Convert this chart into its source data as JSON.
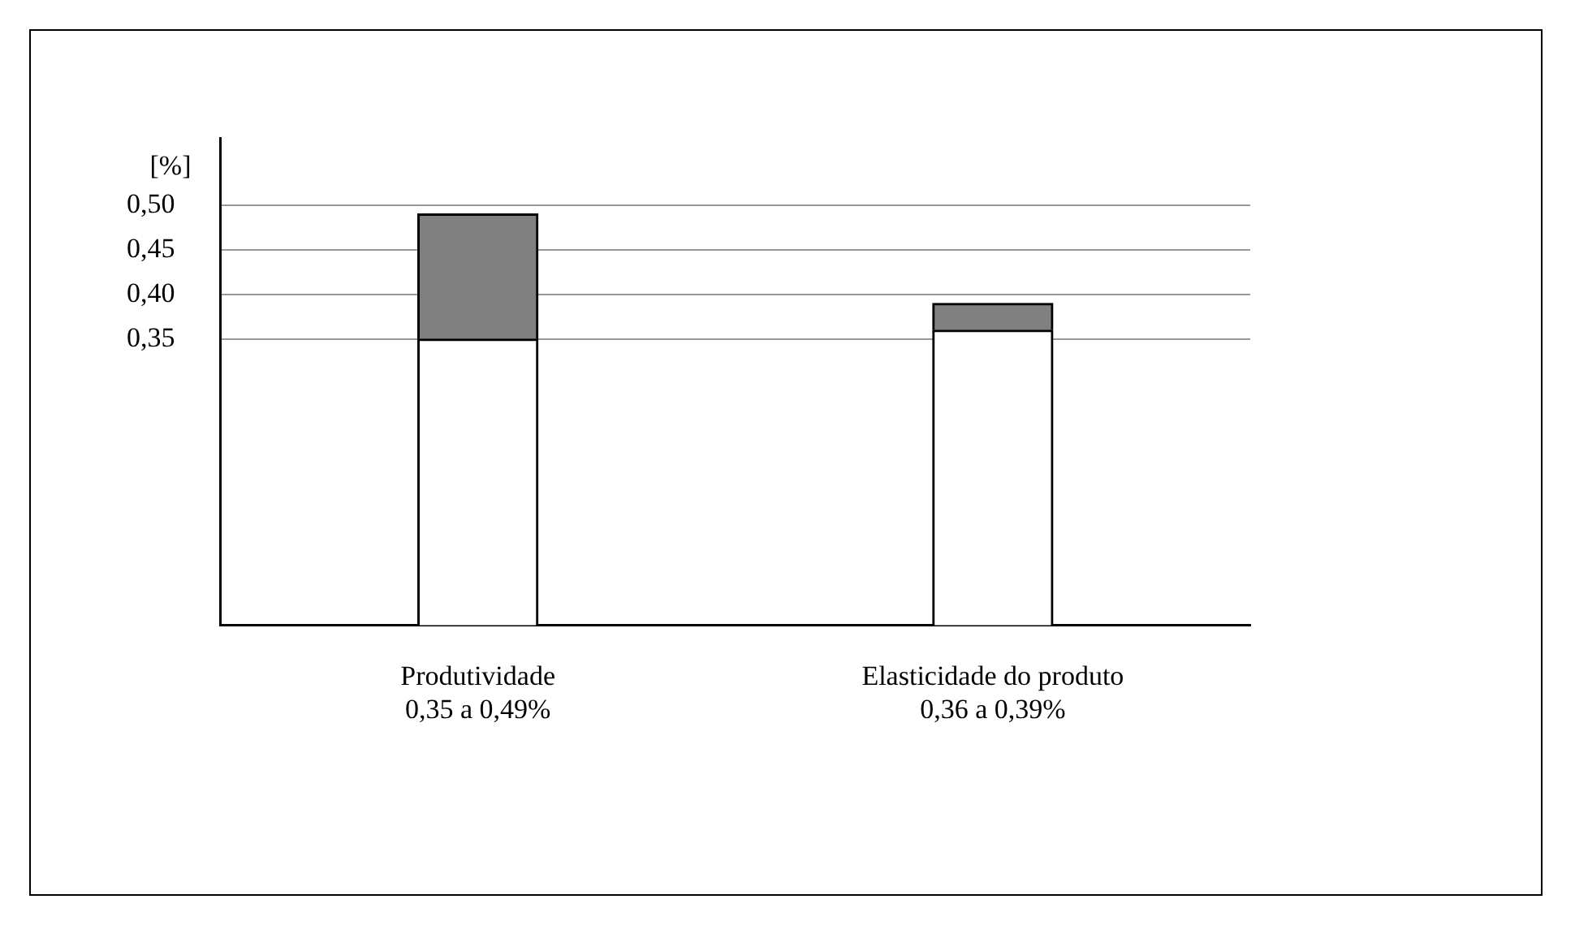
{
  "chart_data": {
    "type": "bar",
    "stacked": true,
    "ylabel": "[%]",
    "categories": [
      "Produtividade\n0,35 a 0,49%",
      "Elasticidade do produto\n0,36 a 0,39%"
    ],
    "series": [
      {
        "color": "#ffffff",
        "values": [
          0.35,
          0.36
        ]
      },
      {
        "color": "#808080",
        "values": [
          0.14,
          0.03
        ]
      }
    ],
    "ylim": [
      0.03,
      0.575
    ],
    "yticks": [
      {
        "value": 0.35,
        "label": "0,35"
      },
      {
        "value": 0.4,
        "label": "0,40"
      },
      {
        "value": 0.45,
        "label": "0,45"
      },
      {
        "value": 0.5,
        "label": "0,50"
      }
    ],
    "grid": "y",
    "legend": false
  }
}
